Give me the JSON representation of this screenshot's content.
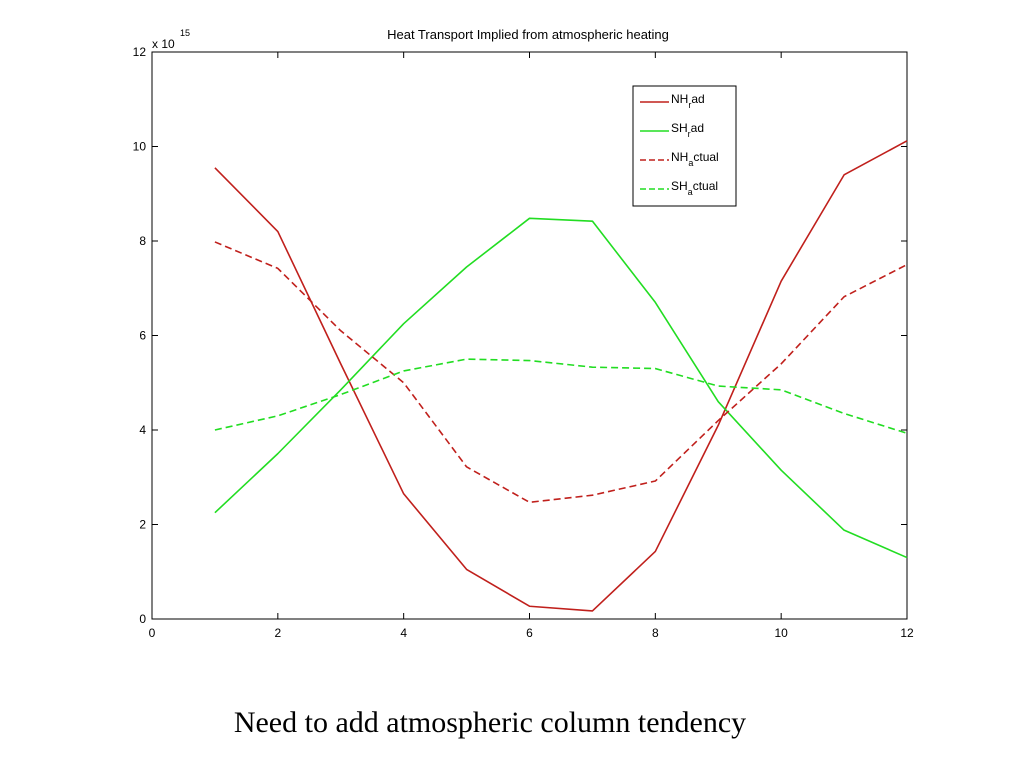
{
  "chart_data": {
    "type": "line",
    "title": "Heat Transport Implied from atmospheric heating",
    "xlabel": "",
    "ylabel": "",
    "xlim": [
      0,
      12
    ],
    "ylim": [
      0,
      12
    ],
    "xticks": [
      0,
      2,
      4,
      6,
      8,
      10,
      12
    ],
    "yticks": [
      0,
      2,
      4,
      6,
      8,
      10,
      12
    ],
    "y_multiplier": "x 10",
    "y_multiplier_exponent": "15",
    "grid": false,
    "legend_position": "top-right",
    "x": [
      1,
      2,
      3,
      4,
      5,
      6,
      7,
      8,
      9,
      10,
      11,
      12
    ],
    "series": [
      {
        "name": "NH_rad",
        "legend_main": "NH",
        "legend_sub": "r",
        "legend_rest": "ad",
        "color": "#c0201c",
        "dash": "solid",
        "values": [
          9.55,
          8.2,
          5.4,
          2.65,
          1.05,
          0.27,
          0.17,
          1.43,
          4.1,
          7.15,
          9.4,
          10.12
        ]
      },
      {
        "name": "SH_rad",
        "legend_main": "SH",
        "legend_sub": "r",
        "legend_rest": "ad",
        "color": "#22dd22",
        "dash": "solid",
        "values": [
          2.25,
          3.5,
          4.85,
          6.25,
          7.45,
          8.48,
          8.42,
          6.7,
          4.6,
          3.15,
          1.88,
          1.3
        ]
      },
      {
        "name": "NH_actual",
        "legend_main": "NH",
        "legend_sub": "a",
        "legend_rest": "ctual",
        "color": "#c0201c",
        "dash": "dashed",
        "values": [
          7.98,
          7.42,
          6.1,
          5.0,
          3.22,
          2.47,
          2.62,
          2.92,
          4.2,
          5.4,
          6.82,
          7.5
        ]
      },
      {
        "name": "SH_actual",
        "legend_main": "SH",
        "legend_sub": "a",
        "legend_rest": "ctual",
        "color": "#22dd22",
        "dash": "dashed",
        "values": [
          4.0,
          4.3,
          4.75,
          5.25,
          5.5,
          5.47,
          5.33,
          5.3,
          4.93,
          4.85,
          4.35,
          3.93
        ]
      }
    ]
  },
  "caption": "Need to add atmospheric column tendency"
}
